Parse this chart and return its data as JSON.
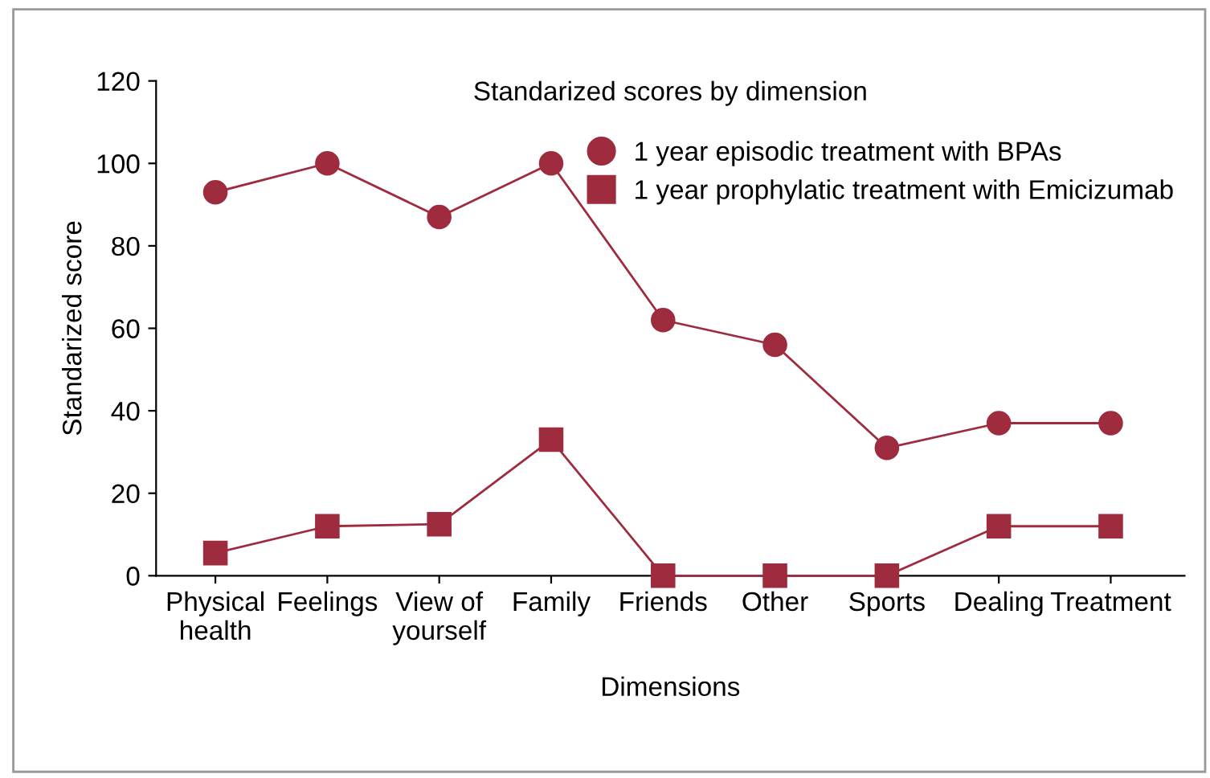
{
  "chart_data": {
    "type": "line",
    "title": "Standarized scores by dimension",
    "xlabel": "Dimensions",
    "ylabel": "Standarized score",
    "categories": [
      "Physical\nhealth",
      "Feelings",
      "View of\nyourself",
      "Family",
      "Friends",
      "Other",
      "Sports",
      "Dealing",
      "Treatment"
    ],
    "series": [
      {
        "name": "1 year episodic treatment with BPAs",
        "color": "#9e2b3e",
        "marker": "circle",
        "values": [
          93,
          100,
          87,
          100,
          62,
          56,
          31,
          37,
          37
        ]
      },
      {
        "name": "1 year prophylatic treatment with Emicizumab",
        "color": "#9e2b3e",
        "marker": "square",
        "values": [
          5.5,
          12,
          12.5,
          33,
          0,
          0,
          0,
          12,
          12
        ]
      }
    ],
    "ylim": [
      0,
      120
    ],
    "yticks": [
      0,
      20,
      40,
      60,
      80,
      100,
      120
    ],
    "grid": false,
    "legend": "top right",
    "line_style": "solid"
  }
}
